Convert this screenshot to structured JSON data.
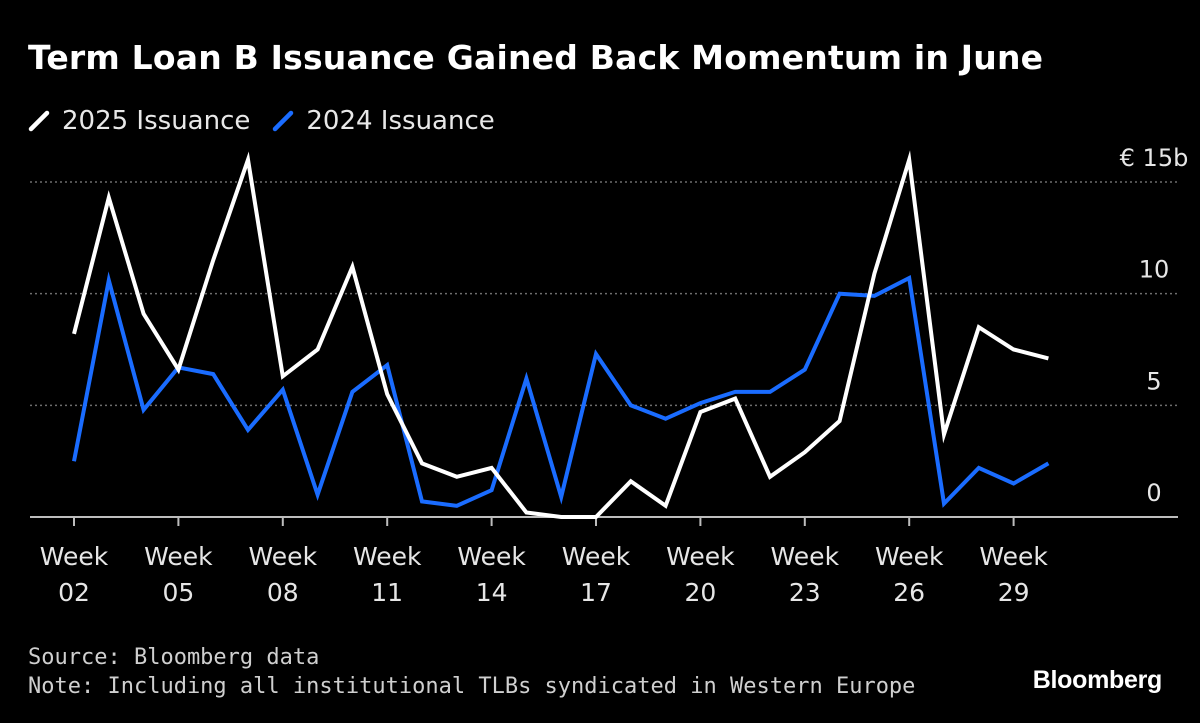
{
  "title": "Term Loan B Issuance Gained Back Momentum in June",
  "source": "Source: Bloomberg data",
  "note": "Note: Including all institutional TLBs syndicated in Western Europe",
  "brand": "Bloomberg",
  "colors": {
    "background": "#000000",
    "series_2025": "#ffffff",
    "series_2024": "#1a6cff",
    "grid": "#6e6e6e"
  },
  "chart_data": {
    "type": "line",
    "title": "Term Loan B Issuance Gained Back Momentum in June",
    "xlabel": "",
    "ylabel": "",
    "ylim": [
      0,
      15
    ],
    "y_ticks": [
      {
        "value": 0,
        "label": "0"
      },
      {
        "value": 5,
        "label": "5"
      },
      {
        "value": 10,
        "label": "10"
      },
      {
        "value": 15,
        "label": "€ 15b"
      }
    ],
    "x": [
      2,
      3,
      4,
      5,
      6,
      7,
      8,
      9,
      10,
      11,
      12,
      13,
      14,
      15,
      16,
      17,
      18,
      19,
      20,
      21,
      22,
      23,
      24,
      25,
      26,
      27,
      28,
      29,
      30
    ],
    "x_tick_weeks": [
      2,
      5,
      8,
      11,
      14,
      17,
      20,
      23,
      26,
      29
    ],
    "x_ticks": [
      {
        "top": "Week",
        "bottom": "02"
      },
      {
        "top": "Week",
        "bottom": "05"
      },
      {
        "top": "Week",
        "bottom": "08"
      },
      {
        "top": "Week",
        "bottom": "11"
      },
      {
        "top": "Week",
        "bottom": "14"
      },
      {
        "top": "Week",
        "bottom": "17"
      },
      {
        "top": "Week",
        "bottom": "20"
      },
      {
        "top": "Week",
        "bottom": "23"
      },
      {
        "top": "Week",
        "bottom": "26"
      },
      {
        "top": "Week",
        "bottom": "29"
      }
    ],
    "legend_position": "top-left",
    "grid": true,
    "series": [
      {
        "name": "2025 Issuance",
        "color": "#ffffff",
        "values": [
          8.2,
          14.3,
          9.1,
          6.6,
          11.5,
          16.0,
          6.3,
          7.5,
          11.2,
          5.5,
          2.4,
          1.8,
          2.2,
          0.2,
          0.0,
          0.0,
          1.6,
          0.5,
          4.7,
          5.3,
          1.8,
          2.9,
          4.3,
          10.9,
          16.0,
          3.7,
          8.5,
          7.5,
          7.1
        ]
      },
      {
        "name": "2024 Issuance",
        "color": "#1a6cff",
        "values": [
          2.5,
          10.6,
          4.8,
          6.7,
          6.4,
          3.9,
          5.7,
          1.0,
          5.6,
          6.8,
          0.7,
          0.5,
          1.2,
          6.2,
          0.9,
          7.3,
          5.0,
          4.4,
          5.1,
          5.6,
          5.6,
          6.6,
          10.0,
          9.9,
          10.7,
          0.6,
          2.2,
          1.5,
          2.4
        ]
      }
    ]
  }
}
